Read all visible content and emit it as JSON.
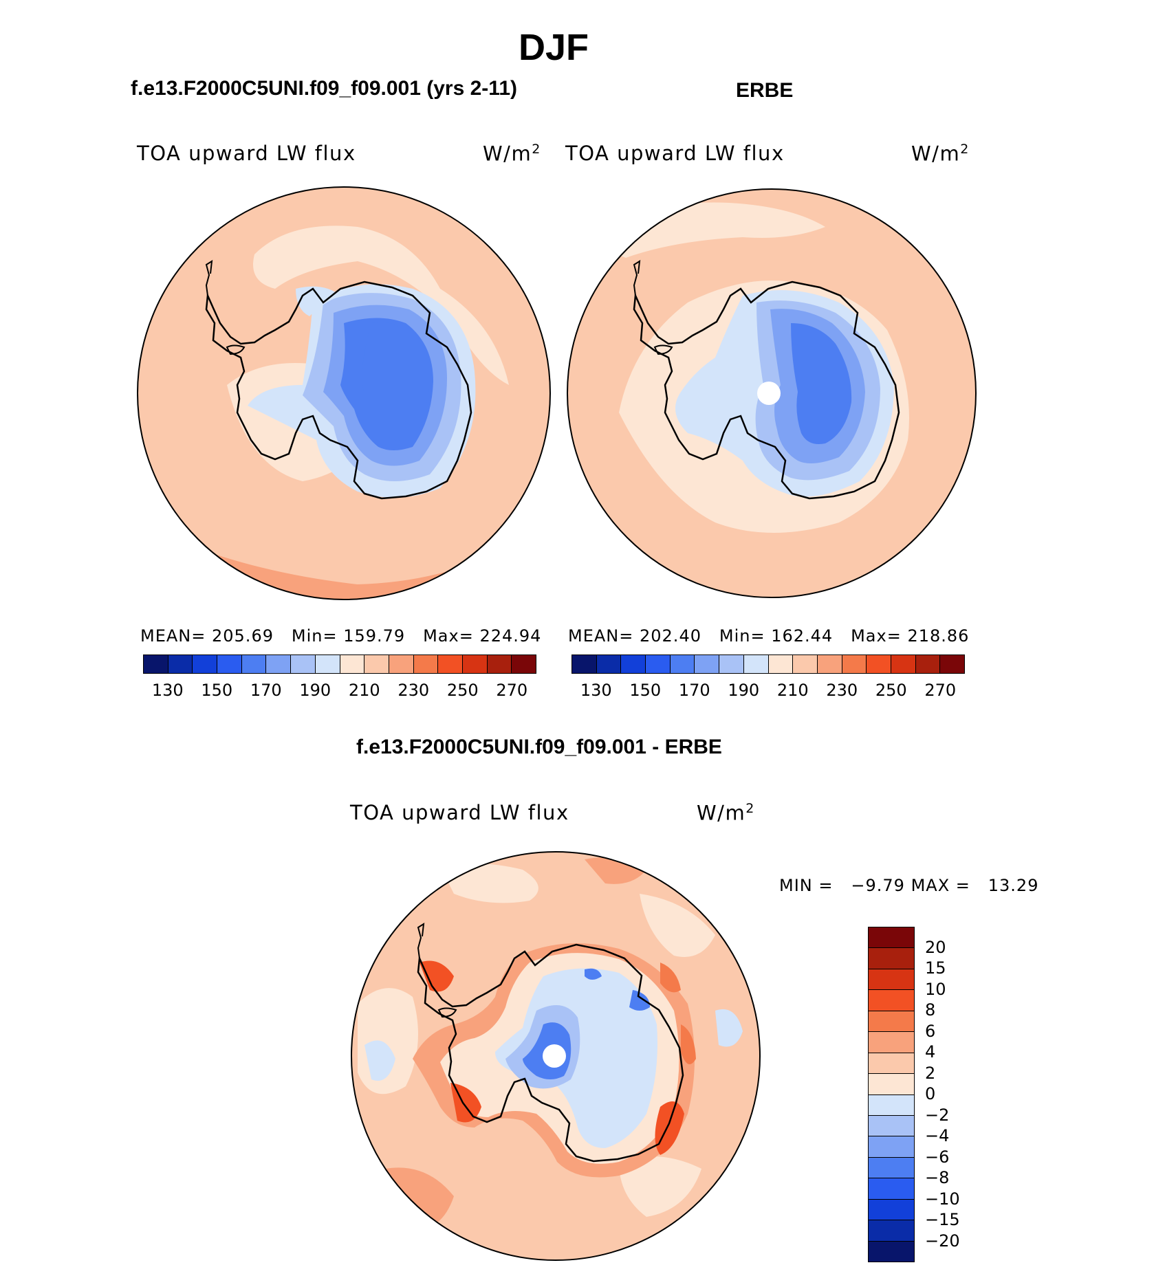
{
  "title": "DJF",
  "top_left": {
    "case_title": "f.e13.F2000C5UNI.f09_f09.001 (yrs 2-11)",
    "variable": "TOA upward LW flux",
    "units": "W/m",
    "units_exp": "2",
    "mean_label": "MEAN=",
    "mean_value": "205.69",
    "min_label": "Min=",
    "min_value": "159.79",
    "max_label": "Max=",
    "max_value": "224.94"
  },
  "top_right": {
    "case_title": "ERBE",
    "variable": "TOA upward LW flux",
    "units": "W/m",
    "units_exp": "2",
    "mean_label": "MEAN=",
    "mean_value": "202.40",
    "min_label": "Min=",
    "min_value": "162.44",
    "max_label": "Max=",
    "max_value": "218.86"
  },
  "bottom": {
    "case_title": "f.e13.F2000C5UNI.f09_f09.001 - ERBE",
    "variable": "TOA upward LW flux",
    "units": "W/m",
    "units_exp": "2",
    "min_label": "MIN =",
    "min_value": "−9.79",
    "max_label": "MAX =",
    "max_value": "13.29"
  },
  "flux_colorbar": {
    "colors": [
      "#08156b",
      "#0a2ca8",
      "#1240d9",
      "#2a5cf0",
      "#4d7ef2",
      "#7ea2f4",
      "#a9c2f6",
      "#d3e4fa",
      "#fde6d4",
      "#fbc9ac",
      "#f8a27c",
      "#f47a4a",
      "#f25124",
      "#d73413",
      "#a8200d",
      "#7a0608"
    ],
    "tick_labels": [
      "130",
      "150",
      "170",
      "190",
      "210",
      "230",
      "250",
      "270"
    ]
  },
  "diff_colorbar": {
    "colors": [
      "#08156b",
      "#0a2ca8",
      "#1240d9",
      "#2a5cf0",
      "#4d7ef2",
      "#7ea2f4",
      "#a9c2f6",
      "#d3e4fa",
      "#fde6d4",
      "#fbc9ac",
      "#f8a27c",
      "#f47a4a",
      "#f25124",
      "#d73413",
      "#a8200d",
      "#7a0608"
    ],
    "tick_labels": [
      "20",
      "15",
      "10",
      "8",
      "6",
      "4",
      "2",
      "0",
      "−2",
      "−4",
      "−6",
      "−8",
      "−10",
      "−15",
      "−20"
    ]
  }
}
